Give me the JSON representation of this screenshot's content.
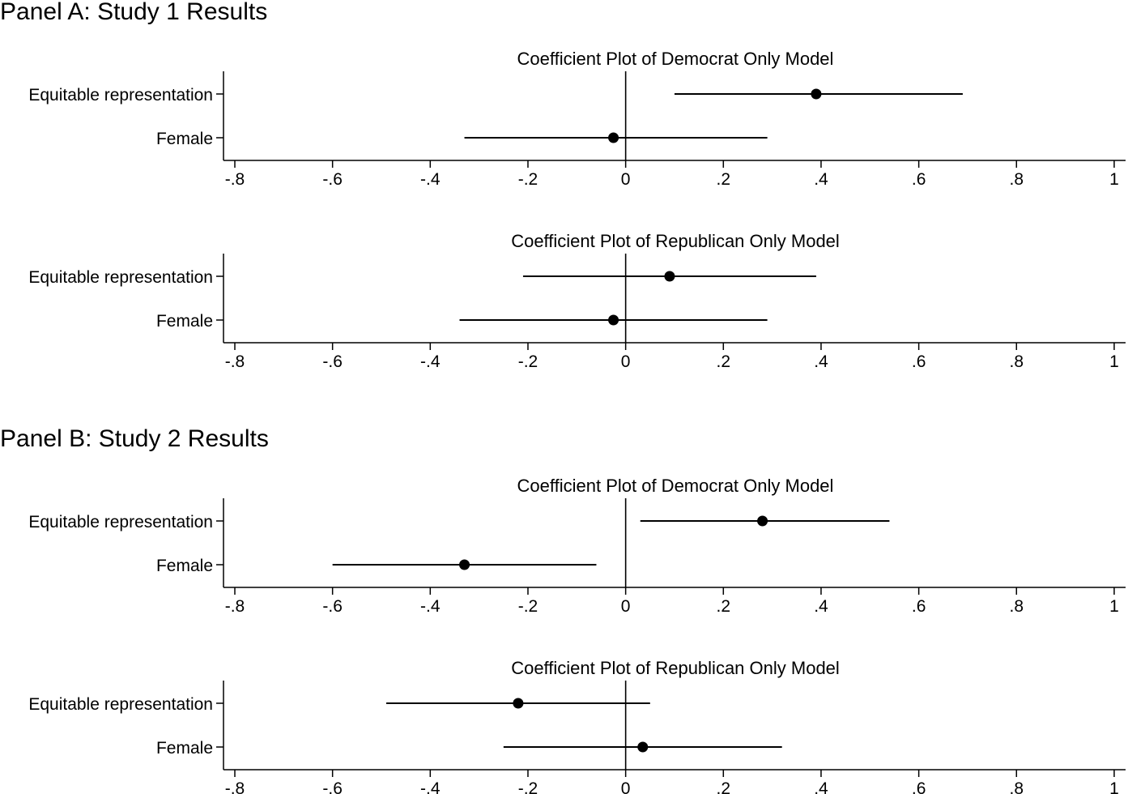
{
  "panels": [
    {
      "title": "Panel A: Study 1 Results"
    },
    {
      "title": "Panel B: Study 2 Results"
    }
  ],
  "chart_data": [
    {
      "type": "scatter",
      "panel": "Panel A: Study 1 Results",
      "title": "Coefficient Plot of Democrat Only Model",
      "xlabel": "",
      "ylabel": "",
      "categories": [
        "Equitable representation",
        "Female"
      ],
      "values": [
        0.39,
        -0.025
      ],
      "ci_low": [
        0.1,
        -0.33
      ],
      "ci_high": [
        0.69,
        0.29
      ],
      "xlim": [
        -0.8,
        1.0
      ],
      "xticks": [
        -0.8,
        -0.6,
        -0.4,
        -0.2,
        0,
        0.2,
        0.4,
        0.6,
        0.8,
        1
      ],
      "xtick_labels": [
        "-.8",
        "-.6",
        "-.4",
        "-.2",
        "0",
        ".2",
        ".4",
        ".6",
        ".8",
        "1"
      ],
      "reference_line": 0,
      "grid": false
    },
    {
      "type": "scatter",
      "panel": "Panel A: Study 1 Results",
      "title": "Coefficient Plot of Republican Only Model",
      "xlabel": "",
      "ylabel": "",
      "categories": [
        "Equitable representation",
        "Female"
      ],
      "values": [
        0.09,
        -0.025
      ],
      "ci_low": [
        -0.21,
        -0.34
      ],
      "ci_high": [
        0.39,
        0.29
      ],
      "xlim": [
        -0.8,
        1.0
      ],
      "xticks": [
        -0.8,
        -0.6,
        -0.4,
        -0.2,
        0,
        0.2,
        0.4,
        0.6,
        0.8,
        1
      ],
      "xtick_labels": [
        "-.8",
        "-.6",
        "-.4",
        "-.2",
        "0",
        ".2",
        ".4",
        ".6",
        ".8",
        "1"
      ],
      "reference_line": 0,
      "grid": false
    },
    {
      "type": "scatter",
      "panel": "Panel B: Study 2 Results",
      "title": "Coefficient Plot of Democrat Only Model",
      "xlabel": "",
      "ylabel": "",
      "categories": [
        "Equitable representation",
        "Female"
      ],
      "values": [
        0.28,
        -0.33
      ],
      "ci_low": [
        0.03,
        -0.6
      ],
      "ci_high": [
        0.54,
        -0.06
      ],
      "xlim": [
        -0.8,
        1.0
      ],
      "xticks": [
        -0.8,
        -0.6,
        -0.4,
        -0.2,
        0,
        0.2,
        0.4,
        0.6,
        0.8,
        1
      ],
      "xtick_labels": [
        "-.8",
        "-.6",
        "-.4",
        "-.2",
        "0",
        ".2",
        ".4",
        ".6",
        ".8",
        "1"
      ],
      "reference_line": 0,
      "grid": false
    },
    {
      "type": "scatter",
      "panel": "Panel B: Study 2 Results",
      "title": "Coefficient Plot of Republican Only Model",
      "xlabel": "",
      "ylabel": "",
      "categories": [
        "Equitable representation",
        "Female"
      ],
      "values": [
        -0.22,
        0.035
      ],
      "ci_low": [
        -0.49,
        -0.25
      ],
      "ci_high": [
        0.05,
        0.32
      ],
      "xlim": [
        -0.8,
        1.0
      ],
      "xticks": [
        -0.8,
        -0.6,
        -0.4,
        -0.2,
        0,
        0.2,
        0.4,
        0.6,
        0.8,
        1
      ],
      "xtick_labels": [
        "-.8",
        "-.6",
        "-.4",
        "-.2",
        "0",
        ".2",
        ".4",
        ".6",
        ".8",
        "1"
      ],
      "reference_line": 0,
      "grid": false
    }
  ]
}
